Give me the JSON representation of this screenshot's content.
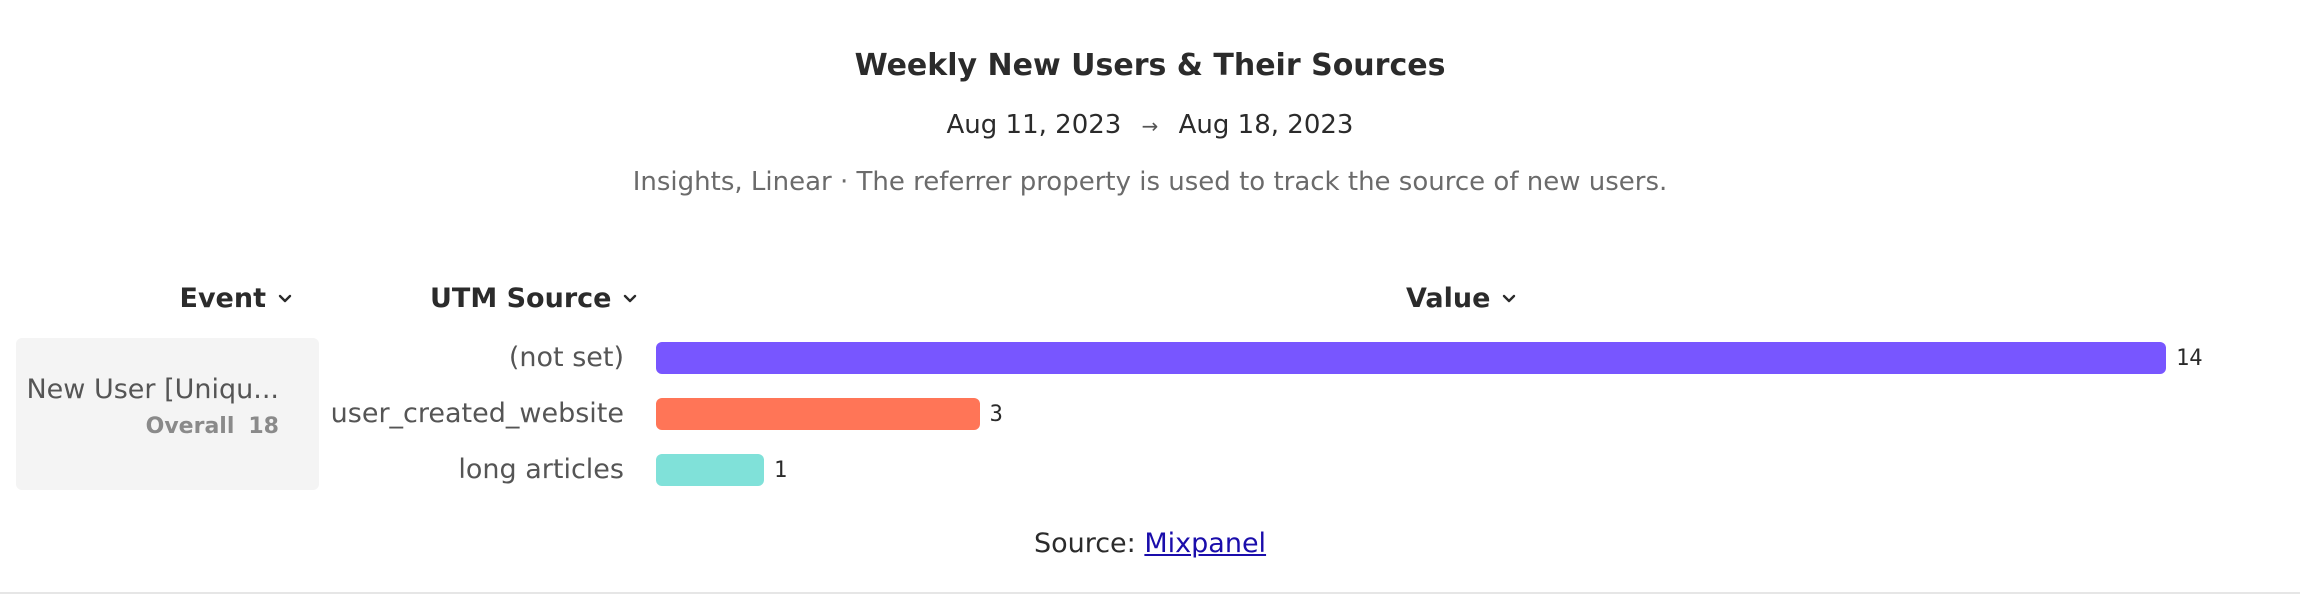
{
  "header": {
    "title": "Weekly New Users & Their Sources",
    "date_start": "Aug 11, 2023",
    "date_arrow": "→",
    "date_end": "Aug 18, 2023",
    "subtitle": "Insights, Linear · The referrer property is used to track the source of new users."
  },
  "columns": {
    "event": "Event",
    "utm_source": "UTM Source",
    "value": "Value"
  },
  "event_card": {
    "name": "New User [Uniqu...",
    "overall_label": "Overall",
    "overall_value": "18"
  },
  "chart_data": {
    "type": "bar",
    "orientation": "horizontal",
    "categories": [
      "(not set)",
      "user_created_website",
      "long articles"
    ],
    "values": [
      14,
      3,
      1
    ],
    "colors": [
      "#7856ff",
      "#ff7557",
      "#80e1d9"
    ],
    "xlim": [
      0,
      14
    ]
  },
  "footer": {
    "source_label": "Source:",
    "source_link": "Mixpanel"
  }
}
